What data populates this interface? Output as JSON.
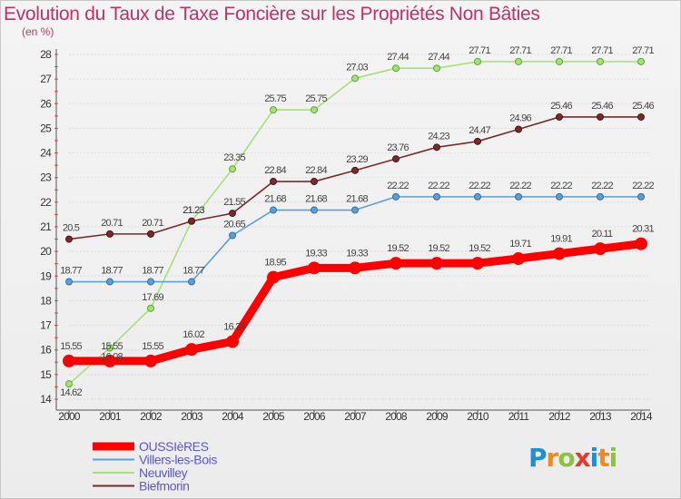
{
  "header": {
    "title": "Evolution du Taux de Taxe Foncière sur les Propriétés Non Bâties",
    "subtitle": "(en %)"
  },
  "logo": {
    "text": "Proxiti",
    "letters": [
      {
        "ch": "P",
        "color": "#1e8fd6"
      },
      {
        "ch": "r",
        "color": "#f08a1c"
      },
      {
        "ch": "o",
        "color": "#8ac43f"
      },
      {
        "ch": "x",
        "color": "#e23b2e"
      },
      {
        "ch": "i",
        "color": "#1e8fd6"
      },
      {
        "ch": "t",
        "color": "#f08a1c"
      },
      {
        "ch": "i",
        "color": "#8ac43f"
      }
    ]
  },
  "chart_data": {
    "type": "line",
    "title": "Evolution du Taux de Taxe Foncière sur les Propriétés Non Bâties",
    "ylabel": "(en %)",
    "xlabel": "",
    "x": [
      "2000",
      "2001",
      "2002",
      "2003",
      "2004",
      "2005",
      "2006",
      "2007",
      "2008",
      "2009",
      "2010",
      "2011",
      "2012",
      "2013",
      "2014"
    ],
    "ylim": [
      14,
      28
    ],
    "yticks": [
      14,
      15,
      16,
      17,
      18,
      19,
      20,
      21,
      22,
      23,
      24,
      25,
      26,
      27,
      28
    ],
    "grid": "horizontal",
    "legend_position": "bottom-left",
    "series": [
      {
        "name": "OUSSIèRES",
        "color": "#ff0000",
        "values": [
          15.55,
          15.55,
          15.55,
          16.02,
          16.34,
          18.95,
          19.33,
          19.33,
          19.52,
          19.52,
          19.52,
          19.71,
          19.91,
          20.11,
          20.31
        ],
        "labels": [
          "15.55",
          "15.55",
          "15.55",
          "16.02",
          "16.34",
          "18.95",
          "19.33",
          "19.33",
          "19.52",
          "19.52",
          "19.52",
          "19.71",
          "19.91",
          "20.11",
          "20.31"
        ]
      },
      {
        "name": "Villers-les-Bois",
        "color": "#5c9fd6",
        "values": [
          18.77,
          18.77,
          18.77,
          18.77,
          20.65,
          21.68,
          21.68,
          21.68,
          22.22,
          22.22,
          22.22,
          22.22,
          22.22,
          22.22,
          22.22
        ],
        "labels": [
          "18.77",
          "18.77",
          "18.77",
          "18.77",
          "20.65",
          "21.68",
          "21.68",
          "21.68",
          "22.22",
          "22.22",
          "22.22",
          "22.22",
          "22.22",
          "22.22",
          "22.22"
        ]
      },
      {
        "name": "Neuvilley",
        "color": "#a6e07a",
        "values": [
          14.62,
          16.08,
          17.69,
          21.23,
          23.35,
          25.75,
          25.75,
          27.03,
          27.44,
          27.44,
          27.71,
          27.71,
          27.71,
          27.71,
          27.71
        ],
        "labels": [
          "14.62",
          "16.08",
          "17.69",
          "21.23",
          "23.35",
          "25.75",
          "25.75",
          "27.03",
          "27.44",
          "27.44",
          "27.71",
          "27.71",
          "27.71",
          "27.71",
          "27.71"
        ]
      },
      {
        "name": "Biefmorin",
        "color": "#7a2a2a",
        "values": [
          20.5,
          20.71,
          20.71,
          21.23,
          21.55,
          22.84,
          22.84,
          23.29,
          23.76,
          24.23,
          24.47,
          24.96,
          25.46,
          25.46,
          25.46
        ],
        "labels": [
          "20.5",
          "20.71",
          "20.71",
          "21.23",
          "21.55",
          "22.84",
          "22.84",
          "23.29",
          "23.76",
          "24.23",
          "24.47",
          "24.96",
          "25.46",
          "25.46",
          "25.46"
        ]
      }
    ]
  }
}
